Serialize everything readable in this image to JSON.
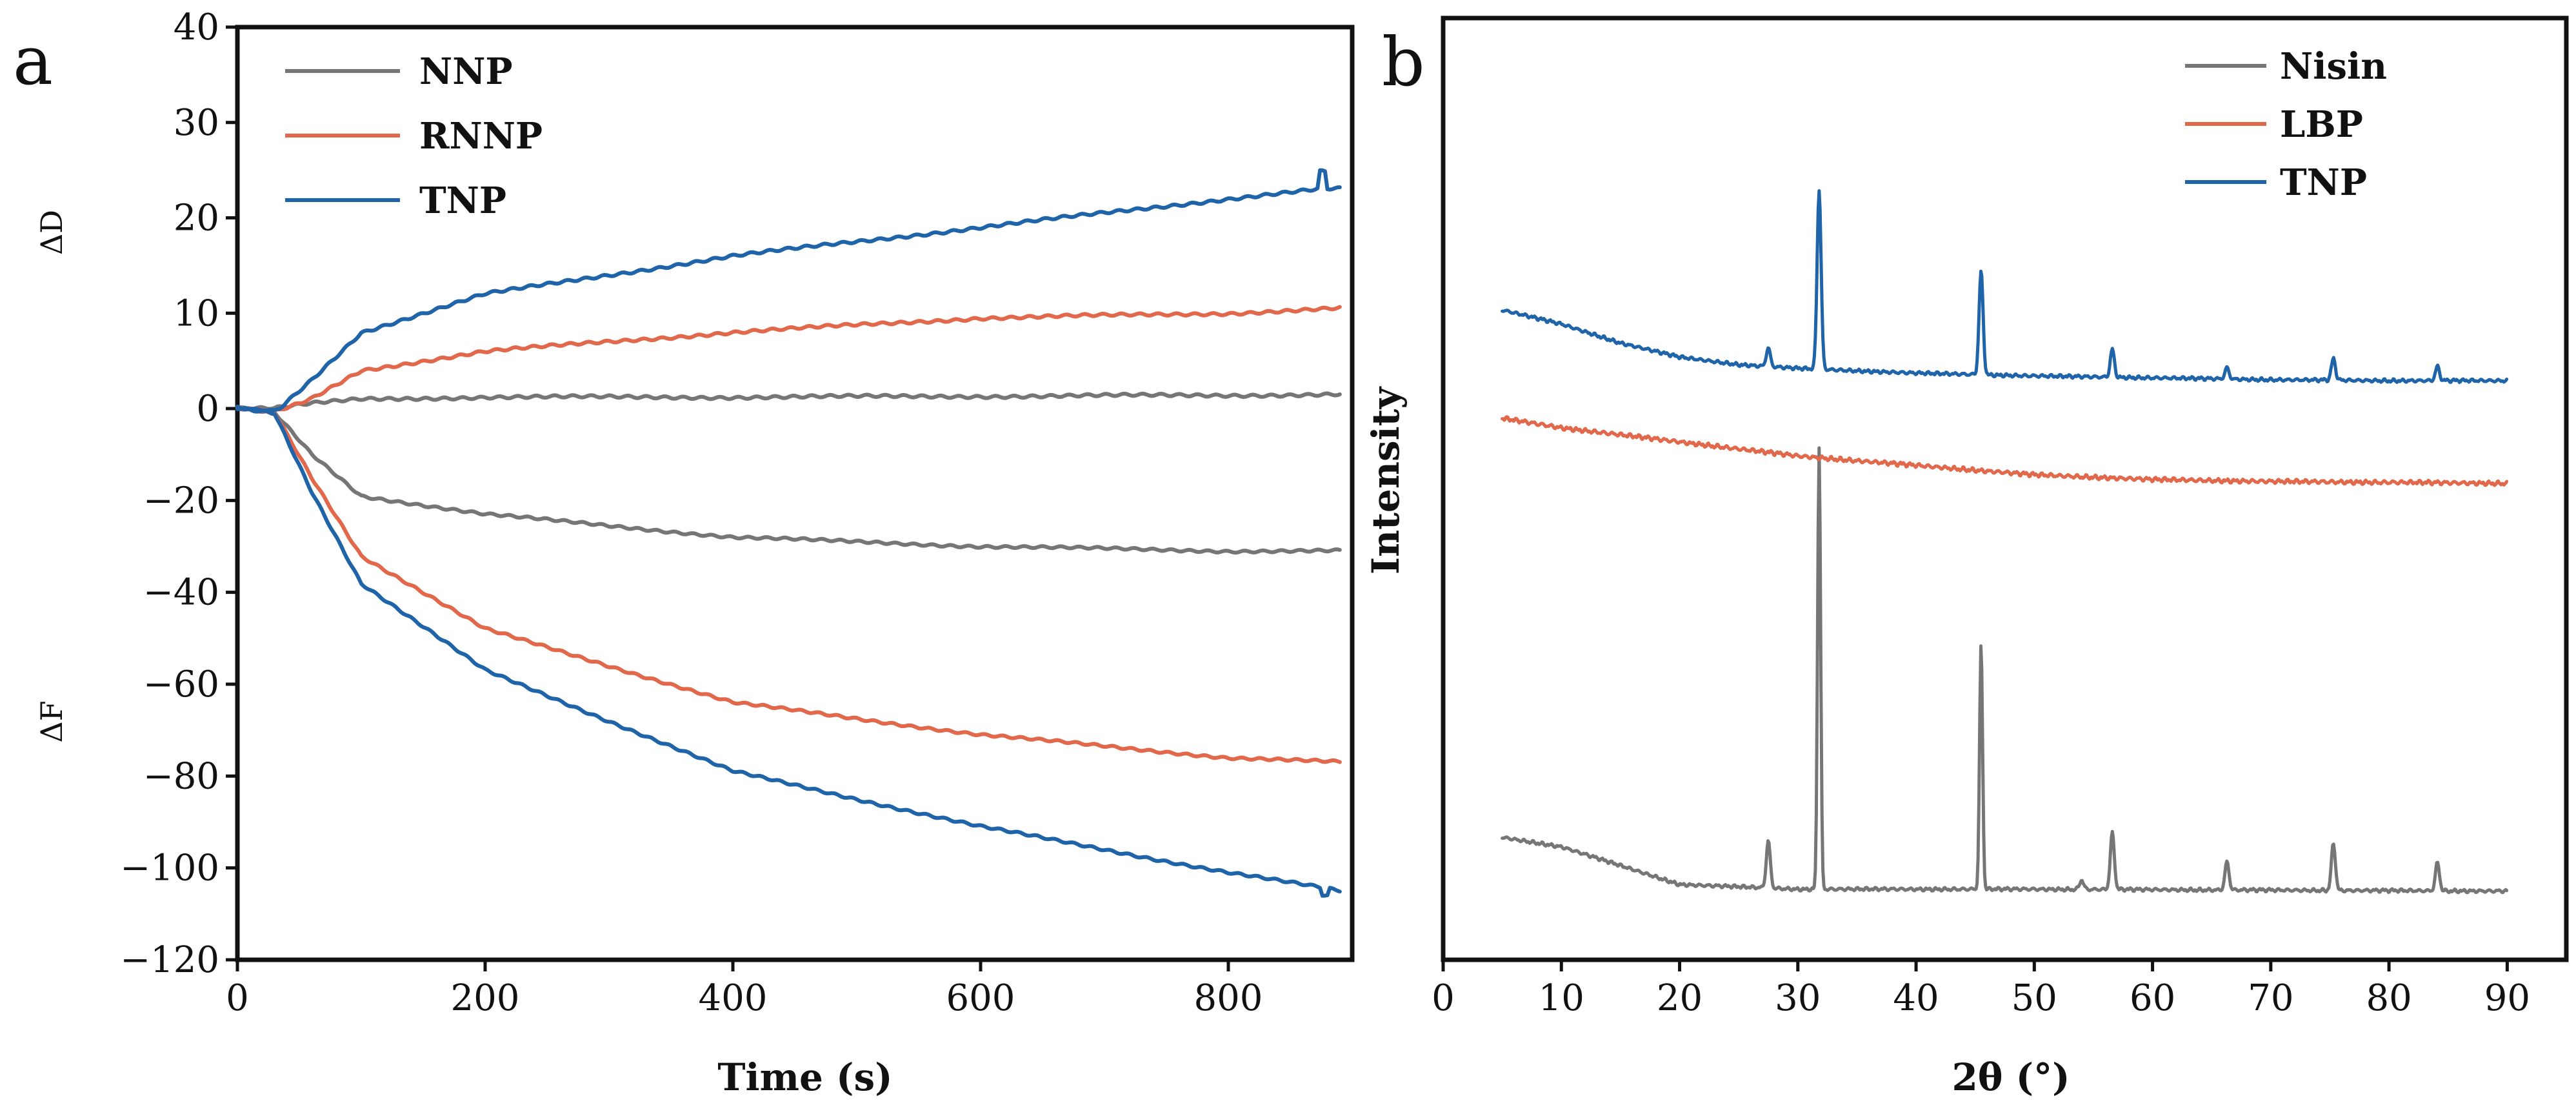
{
  "figure": {
    "panels": [
      "a",
      "b"
    ]
  },
  "chart_data": [
    {
      "id": "a",
      "type": "line",
      "panel_label": "a",
      "title": "",
      "xlabel": "Time (s)",
      "ylabel_top": "ΔD",
      "ylabel_bottom": "ΔF",
      "xlim": [
        0,
        900
      ],
      "ylim": [
        -120,
        40
      ],
      "xticks": [
        0,
        200,
        400,
        600,
        800
      ],
      "xtick_labels": [
        "0",
        "200",
        "400",
        "600",
        "800"
      ],
      "yticks": [
        40,
        30,
        20,
        10,
        0,
        -20,
        -40,
        -60,
        -80,
        -100,
        -120
      ],
      "ytick_labels": [
        "40",
        "30",
        "20",
        "10",
        "0",
        "−20",
        "−40",
        "−60",
        "−80",
        "−100",
        "−120"
      ],
      "y_axis_note": "piecewise scale: upper section 0 to 40 (ΔD) and lower section 0 to -120 (ΔF)",
      "legend_position": "top-left",
      "series": [
        {
          "name": "NNP",
          "color": "#767676",
          "D": {
            "x": [
              0,
              30,
              60,
              100,
              200,
              400,
              600,
              800,
              890
            ],
            "y": [
              0,
              0,
              0.5,
              1,
              1.2,
              1.2,
              1.3,
              1.4,
              1.5
            ]
          },
          "F": {
            "x": [
              0,
              30,
              60,
              100,
              200,
              400,
              600,
              800,
              890
            ],
            "y": [
              0,
              -1,
              -10,
              -19,
              -23,
              -28,
              -30,
              -31,
              -31
            ]
          }
        },
        {
          "name": "RNNP",
          "color": "#e2684b",
          "D": {
            "x": [
              0,
              30,
              60,
              100,
              200,
              400,
              600,
              800,
              890
            ],
            "y": [
              0,
              -0.5,
              1,
              4,
              6,
              8,
              9.5,
              10,
              10.5
            ]
          },
          "F": {
            "x": [
              0,
              30,
              60,
              100,
              200,
              400,
              600,
              800,
              890
            ],
            "y": [
              0,
              -1,
              -15,
              -32,
              -48,
              -64,
              -71,
              -76,
              -77
            ]
          }
        },
        {
          "name": "TNP",
          "color": "#1f63a8",
          "D": {
            "x": [
              0,
              30,
              60,
              100,
              200,
              400,
              600,
              800,
              875,
              890
            ],
            "y": [
              0,
              -0.5,
              3,
              8,
              12,
              16,
              19,
              22,
              23,
              23
            ]
          },
          "F": {
            "x": [
              0,
              30,
              60,
              100,
              200,
              400,
              600,
              800,
              890
            ],
            "y": [
              0,
              -1,
              -18,
              -38,
              -57,
              -79,
              -91,
              -101,
              -105
            ]
          }
        }
      ]
    },
    {
      "id": "b",
      "type": "line",
      "panel_label": "b",
      "title": "",
      "xlabel": "2θ (°)",
      "ylabel": "Intensity",
      "xlim": [
        0,
        95
      ],
      "ylim": [
        0,
        100
      ],
      "xticks": [
        0,
        10,
        20,
        30,
        40,
        50,
        60,
        70,
        80,
        90
      ],
      "xtick_labels": [
        "0",
        "10",
        "20",
        "30",
        "40",
        "50",
        "60",
        "70",
        "80",
        "90"
      ],
      "legend_position": "top-right",
      "intensity_units": "arbitrary (stacked traces, no y tick labels)",
      "series": [
        {
          "name": "Nisin",
          "color": "#767676",
          "baseline": {
            "x": [
              5,
              10,
              15,
              20,
              30,
              50,
              90
            ],
            "y": [
              13,
              12,
              10,
              8,
              7.5,
              7.5,
              7.3
            ]
          },
          "peaks": [
            {
              "x": 27.5,
              "height": 5
            },
            {
              "x": 31.8,
              "height": 47
            },
            {
              "x": 45.5,
              "height": 26
            },
            {
              "x": 54,
              "height": 1
            },
            {
              "x": 56.6,
              "height": 6
            },
            {
              "x": 66.3,
              "height": 3
            },
            {
              "x": 75.3,
              "height": 5
            },
            {
              "x": 84.1,
              "height": 3
            }
          ]
        },
        {
          "name": "LBP",
          "color": "#e2684b",
          "baseline": {
            "x": [
              5,
              10,
              20,
              30,
              40,
              50,
              60,
              70,
              80,
              90
            ],
            "y": [
              57.5,
              56.5,
              55,
              53.5,
              52.5,
              51.5,
              51,
              50.8,
              50.7,
              50.6
            ]
          },
          "peaks": []
        },
        {
          "name": "TNP",
          "color": "#1f63a8",
          "baseline": {
            "x": [
              5,
              10,
              15,
              20,
              25,
              30,
              40,
              50,
              60,
              70,
              80,
              90
            ],
            "y": [
              69,
              67.5,
              65.5,
              64,
              63.2,
              62.8,
              62.3,
              62,
              61.8,
              61.6,
              61.5,
              61.5
            ]
          },
          "peaks": [
            {
              "x": 27.5,
              "height": 2
            },
            {
              "x": 31.8,
              "height": 19
            },
            {
              "x": 45.5,
              "height": 11
            },
            {
              "x": 56.6,
              "height": 3
            },
            {
              "x": 66.3,
              "height": 1.2
            },
            {
              "x": 75.3,
              "height": 2.3
            },
            {
              "x": 84.1,
              "height": 1.5
            }
          ]
        }
      ]
    }
  ]
}
